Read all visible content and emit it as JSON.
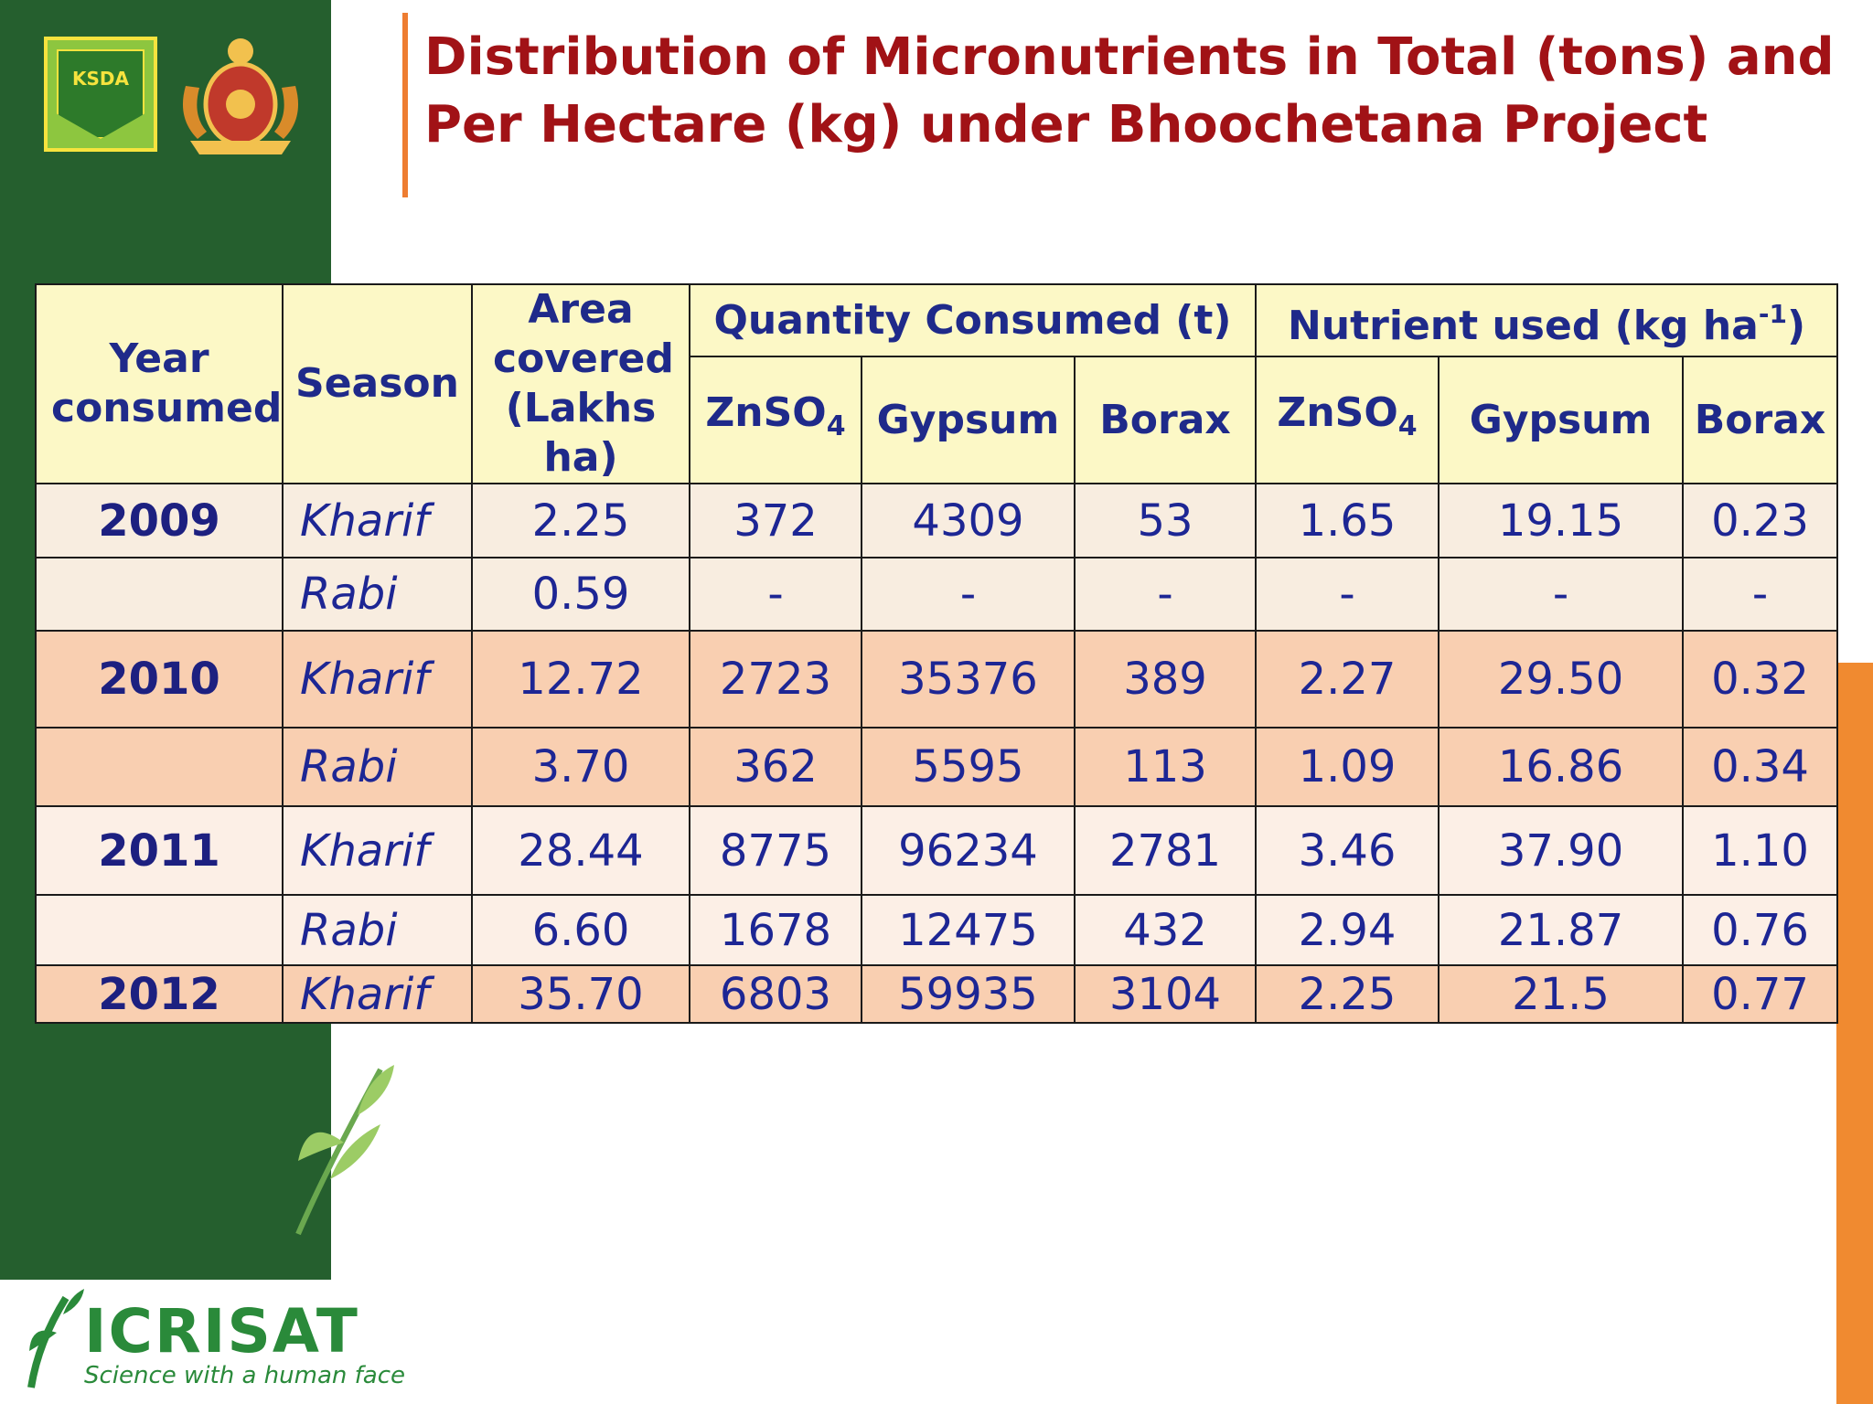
{
  "title": {
    "line1": "Distribution of Micronutrients in Total (tons) and",
    "line2": "Per Hectare (kg) under Bhoochetana Project"
  },
  "logos": {
    "ksda": "KSDA",
    "icrisat_name": "ICRISAT",
    "icrisat_tagline": "Science with a human face"
  },
  "table": {
    "headers": {
      "year": "Year consumed",
      "season": "Season",
      "area": "Area covered (Lakhs ha)",
      "quantity_group": "Quantity Consumed (t)",
      "nutrient_group": "Nutrient used (kg ha",
      "nutrient_unit_sup": "-1",
      "nutrient_group_close": ")",
      "zn_base": "ZnSO",
      "zn_sub": "4",
      "gypsum": "Gypsum",
      "borax": "Borax"
    },
    "rows": [
      {
        "year": "2009",
        "season": "Kharif",
        "area": "2.25",
        "q_zn": "372",
        "q_gyp": "4309",
        "q_bor": "53",
        "n_zn": "1.65",
        "n_gyp": "19.15",
        "n_bor": "0.23"
      },
      {
        "year": "",
        "season": "Rabi",
        "area": "0.59",
        "q_zn": "-",
        "q_gyp": "-",
        "q_bor": "-",
        "n_zn": "-",
        "n_gyp": "-",
        "n_bor": "-"
      },
      {
        "year": "2010",
        "season": "Kharif",
        "area": "12.72",
        "q_zn": "2723",
        "q_gyp": "35376",
        "q_bor": "389",
        "n_zn": "2.27",
        "n_gyp": "29.50",
        "n_bor": "0.32"
      },
      {
        "year": "",
        "season": "Rabi",
        "area": "3.70",
        "q_zn": "362",
        "q_gyp": "5595",
        "q_bor": "113",
        "n_zn": "1.09",
        "n_gyp": "16.86",
        "n_bor": "0.34"
      },
      {
        "year": "2011",
        "season": "Kharif",
        "area": "28.44",
        "q_zn": "8775",
        "q_gyp": "96234",
        "q_bor": "2781",
        "n_zn": "3.46",
        "n_gyp": "37.90",
        "n_bor": "1.10"
      },
      {
        "year": "",
        "season": "Rabi",
        "area": "6.60",
        "q_zn": "1678",
        "q_gyp": "12475",
        "q_bor": "432",
        "n_zn": "2.94",
        "n_gyp": "21.87",
        "n_bor": "0.76"
      },
      {
        "year": "2012",
        "season": "Kharif",
        "area": "35.70",
        "q_zn": "6803",
        "q_gyp": "59935",
        "q_bor": "3104",
        "n_zn": "2.25",
        "n_gyp": "21.5",
        "n_bor": "0.77"
      }
    ]
  },
  "colors": {
    "green": "#255f2e",
    "orange": "#f08a30",
    "title": "#a11216",
    "header_bg": "#fcf8c6"
  }
}
